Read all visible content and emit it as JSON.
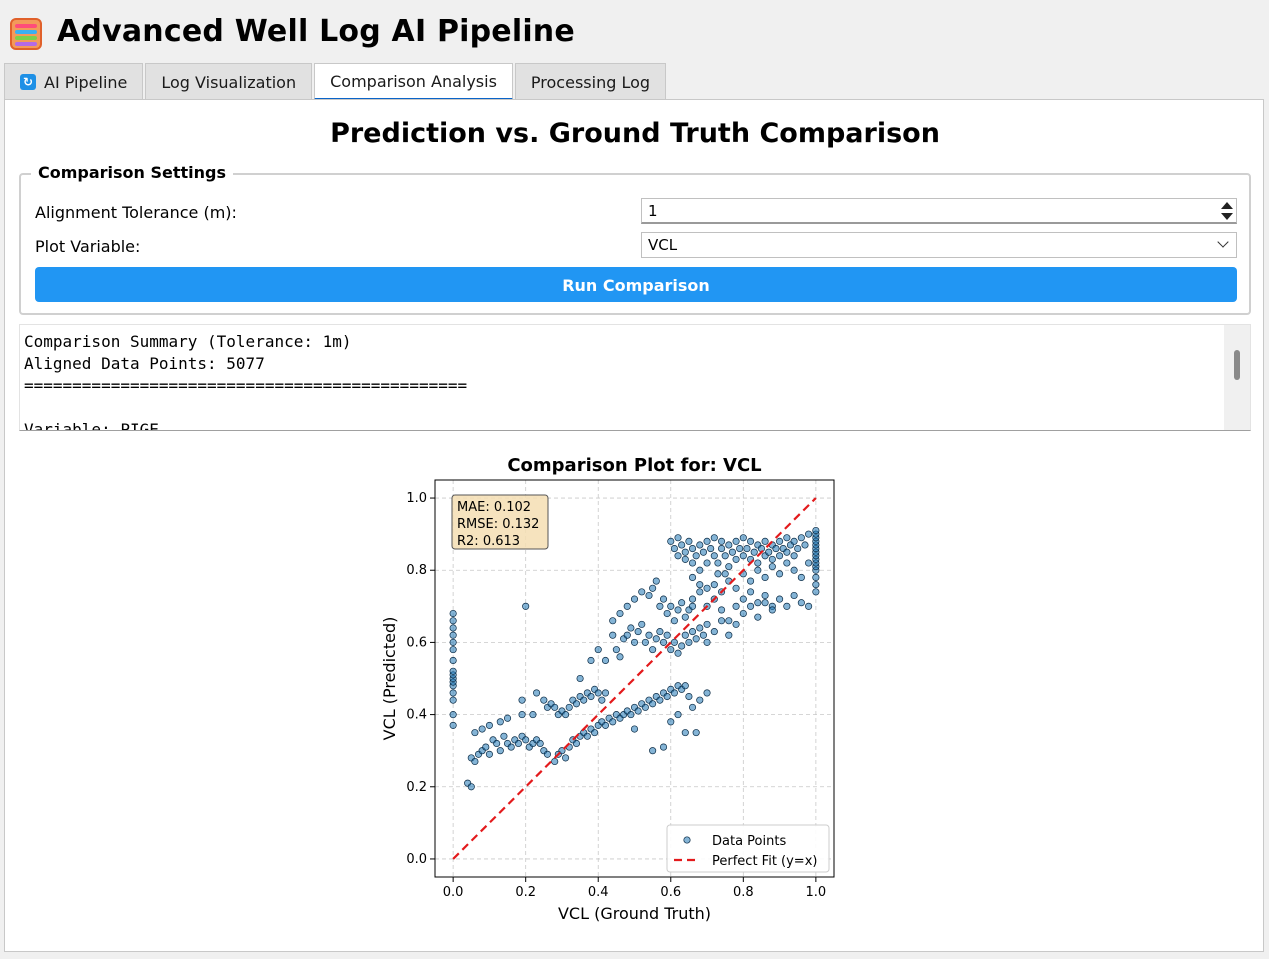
{
  "app": {
    "title": "Advanced Well Log AI Pipeline",
    "icon": "abacus-icon"
  },
  "tabs": [
    {
      "label": "AI Pipeline",
      "icon": "refresh-icon",
      "active": false
    },
    {
      "label": "Log Visualization",
      "active": false
    },
    {
      "label": "Comparison Analysis",
      "active": true
    },
    {
      "label": "Processing Log",
      "active": false
    }
  ],
  "page": {
    "title": "Prediction vs. Ground Truth Comparison"
  },
  "settings": {
    "legend": "Comparison Settings",
    "tolerance_label": "Alignment Tolerance (m):",
    "tolerance_value": "1",
    "variable_label": "Plot Variable:",
    "variable_value": "VCL",
    "run_label": "Run Comparison"
  },
  "summary": {
    "lines": [
      "Comparison Summary (Tolerance: 1m)",
      "Aligned Data Points: 5077",
      "==============================================",
      "",
      "Variable: PIGE"
    ]
  },
  "colors": {
    "accent": "#2196f3",
    "tab_underline": "#0a64c8",
    "point_fill": "#1f77b4",
    "fit_line": "#e31a1c",
    "metrics_box": "#f5deb3"
  },
  "chart_data": {
    "type": "scatter",
    "title": "Comparison Plot for: VCL",
    "xlabel": "VCL (Ground Truth)",
    "ylabel": "VCL (Predicted)",
    "xlim": [
      -0.05,
      1.05
    ],
    "ylim": [
      -0.05,
      1.05
    ],
    "xticks": [
      "0.0",
      "0.2",
      "0.4",
      "0.6",
      "0.8",
      "1.0"
    ],
    "yticks": [
      "0.0",
      "0.2",
      "0.4",
      "0.6",
      "0.8",
      "1.0"
    ],
    "grid": true,
    "metrics": [
      "MAE: 0.102",
      "RMSE: 0.132",
      "R2: 0.613"
    ],
    "metrics_position": "top-left",
    "legend_position": "bottom-right",
    "series": [
      {
        "name": "Data Points",
        "kind": "scatter",
        "points": [
          [
            0.0,
            0.37
          ],
          [
            0.0,
            0.4
          ],
          [
            0.0,
            0.44
          ],
          [
            0.0,
            0.46
          ],
          [
            0.0,
            0.48
          ],
          [
            0.0,
            0.49
          ],
          [
            0.0,
            0.5
          ],
          [
            0.0,
            0.51
          ],
          [
            0.0,
            0.52
          ],
          [
            0.0,
            0.55
          ],
          [
            0.0,
            0.58
          ],
          [
            0.0,
            0.6
          ],
          [
            0.0,
            0.62
          ],
          [
            0.0,
            0.64
          ],
          [
            0.0,
            0.66
          ],
          [
            0.0,
            0.68
          ],
          [
            0.04,
            0.21
          ],
          [
            0.05,
            0.2
          ],
          [
            0.05,
            0.28
          ],
          [
            0.06,
            0.27
          ],
          [
            0.07,
            0.29
          ],
          [
            0.08,
            0.3
          ],
          [
            0.09,
            0.31
          ],
          [
            0.1,
            0.29
          ],
          [
            0.11,
            0.33
          ],
          [
            0.12,
            0.32
          ],
          [
            0.13,
            0.3
          ],
          [
            0.14,
            0.34
          ],
          [
            0.15,
            0.32
          ],
          [
            0.16,
            0.31
          ],
          [
            0.17,
            0.33
          ],
          [
            0.18,
            0.32
          ],
          [
            0.19,
            0.34
          ],
          [
            0.2,
            0.33
          ],
          [
            0.21,
            0.31
          ],
          [
            0.22,
            0.32
          ],
          [
            0.23,
            0.33
          ],
          [
            0.24,
            0.32
          ],
          [
            0.25,
            0.3
          ],
          [
            0.06,
            0.35
          ],
          [
            0.08,
            0.36
          ],
          [
            0.1,
            0.37
          ],
          [
            0.13,
            0.38
          ],
          [
            0.15,
            0.39
          ],
          [
            0.19,
            0.4
          ],
          [
            0.22,
            0.4
          ],
          [
            0.2,
            0.7
          ],
          [
            0.19,
            0.44
          ],
          [
            0.23,
            0.46
          ],
          [
            0.25,
            0.44
          ],
          [
            0.26,
            0.42
          ],
          [
            0.27,
            0.43
          ],
          [
            0.28,
            0.42
          ],
          [
            0.29,
            0.4
          ],
          [
            0.3,
            0.41
          ],
          [
            0.31,
            0.4
          ],
          [
            0.32,
            0.42
          ],
          [
            0.33,
            0.44
          ],
          [
            0.34,
            0.43
          ],
          [
            0.35,
            0.45
          ],
          [
            0.36,
            0.44
          ],
          [
            0.37,
            0.46
          ],
          [
            0.38,
            0.45
          ],
          [
            0.39,
            0.47
          ],
          [
            0.4,
            0.46
          ],
          [
            0.41,
            0.44
          ],
          [
            0.42,
            0.46
          ],
          [
            0.26,
            0.29
          ],
          [
            0.28,
            0.27
          ],
          [
            0.29,
            0.29
          ],
          [
            0.3,
            0.3
          ],
          [
            0.31,
            0.28
          ],
          [
            0.32,
            0.31
          ],
          [
            0.33,
            0.33
          ],
          [
            0.34,
            0.32
          ],
          [
            0.35,
            0.34
          ],
          [
            0.36,
            0.35
          ],
          [
            0.37,
            0.34
          ],
          [
            0.38,
            0.36
          ],
          [
            0.39,
            0.35
          ],
          [
            0.4,
            0.37
          ],
          [
            0.41,
            0.38
          ],
          [
            0.42,
            0.37
          ],
          [
            0.43,
            0.39
          ],
          [
            0.44,
            0.38
          ],
          [
            0.45,
            0.4
          ],
          [
            0.46,
            0.39
          ],
          [
            0.47,
            0.4
          ],
          [
            0.48,
            0.41
          ],
          [
            0.49,
            0.4
          ],
          [
            0.5,
            0.42
          ],
          [
            0.51,
            0.41
          ],
          [
            0.52,
            0.43
          ],
          [
            0.53,
            0.42
          ],
          [
            0.54,
            0.44
          ],
          [
            0.55,
            0.43
          ],
          [
            0.56,
            0.45
          ],
          [
            0.57,
            0.44
          ],
          [
            0.58,
            0.46
          ],
          [
            0.59,
            0.45
          ],
          [
            0.6,
            0.47
          ],
          [
            0.61,
            0.46
          ],
          [
            0.62,
            0.48
          ],
          [
            0.63,
            0.47
          ],
          [
            0.64,
            0.48
          ],
          [
            0.65,
            0.45
          ],
          [
            0.35,
            0.5
          ],
          [
            0.38,
            0.55
          ],
          [
            0.4,
            0.58
          ],
          [
            0.42,
            0.55
          ],
          [
            0.44,
            0.62
          ],
          [
            0.45,
            0.58
          ],
          [
            0.46,
            0.56
          ],
          [
            0.47,
            0.61
          ],
          [
            0.48,
            0.62
          ],
          [
            0.49,
            0.64
          ],
          [
            0.5,
            0.6
          ],
          [
            0.51,
            0.63
          ],
          [
            0.52,
            0.65
          ],
          [
            0.53,
            0.6
          ],
          [
            0.54,
            0.62
          ],
          [
            0.55,
            0.58
          ],
          [
            0.56,
            0.61
          ],
          [
            0.57,
            0.63
          ],
          [
            0.58,
            0.6
          ],
          [
            0.59,
            0.62
          ],
          [
            0.6,
            0.58
          ],
          [
            0.61,
            0.6
          ],
          [
            0.62,
            0.57
          ],
          [
            0.63,
            0.59
          ],
          [
            0.64,
            0.62
          ],
          [
            0.65,
            0.6
          ],
          [
            0.66,
            0.63
          ],
          [
            0.67,
            0.61
          ],
          [
            0.68,
            0.64
          ],
          [
            0.69,
            0.62
          ],
          [
            0.7,
            0.65
          ],
          [
            0.44,
            0.66
          ],
          [
            0.46,
            0.68
          ],
          [
            0.48,
            0.7
          ],
          [
            0.5,
            0.72
          ],
          [
            0.52,
            0.74
          ],
          [
            0.54,
            0.73
          ],
          [
            0.55,
            0.75
          ],
          [
            0.56,
            0.77
          ],
          [
            0.57,
            0.7
          ],
          [
            0.58,
            0.72
          ],
          [
            0.59,
            0.68
          ],
          [
            0.6,
            0.7
          ],
          [
            0.61,
            0.66
          ],
          [
            0.62,
            0.69
          ],
          [
            0.63,
            0.71
          ],
          [
            0.64,
            0.67
          ],
          [
            0.65,
            0.69
          ],
          [
            0.66,
            0.72
          ],
          [
            0.6,
            0.88
          ],
          [
            0.61,
            0.86
          ],
          [
            0.62,
            0.84
          ],
          [
            0.62,
            0.89
          ],
          [
            0.63,
            0.87
          ],
          [
            0.64,
            0.85
          ],
          [
            0.64,
            0.83
          ],
          [
            0.65,
            0.88
          ],
          [
            0.66,
            0.86
          ],
          [
            0.66,
            0.82
          ],
          [
            0.67,
            0.84
          ],
          [
            0.68,
            0.87
          ],
          [
            0.68,
            0.8
          ],
          [
            0.69,
            0.85
          ],
          [
            0.7,
            0.88
          ],
          [
            0.7,
            0.82
          ],
          [
            0.71,
            0.86
          ],
          [
            0.72,
            0.84
          ],
          [
            0.72,
            0.89
          ],
          [
            0.73,
            0.82
          ],
          [
            0.74,
            0.86
          ],
          [
            0.74,
            0.88
          ],
          [
            0.75,
            0.84
          ],
          [
            0.76,
            0.87
          ],
          [
            0.76,
            0.81
          ],
          [
            0.77,
            0.85
          ],
          [
            0.78,
            0.88
          ],
          [
            0.78,
            0.83
          ],
          [
            0.79,
            0.86
          ],
          [
            0.8,
            0.84
          ],
          [
            0.8,
            0.89
          ],
          [
            0.81,
            0.86
          ],
          [
            0.82,
            0.83
          ],
          [
            0.82,
            0.88
          ],
          [
            0.83,
            0.85
          ],
          [
            0.84,
            0.87
          ],
          [
            0.84,
            0.82
          ],
          [
            0.85,
            0.86
          ],
          [
            0.86,
            0.84
          ],
          [
            0.86,
            0.88
          ],
          [
            0.87,
            0.85
          ],
          [
            0.88,
            0.87
          ],
          [
            0.88,
            0.83
          ],
          [
            0.89,
            0.86
          ],
          [
            0.9,
            0.88
          ],
          [
            0.9,
            0.84
          ],
          [
            0.91,
            0.86
          ],
          [
            0.92,
            0.89
          ],
          [
            0.92,
            0.85
          ],
          [
            0.93,
            0.87
          ],
          [
            0.94,
            0.84
          ],
          [
            0.94,
            0.88
          ],
          [
            0.95,
            0.86
          ],
          [
            0.96,
            0.89
          ],
          [
            0.97,
            0.87
          ],
          [
            0.98,
            0.9
          ],
          [
            0.66,
            0.78
          ],
          [
            0.68,
            0.76
          ],
          [
            0.7,
            0.75
          ],
          [
            0.72,
            0.76
          ],
          [
            0.74,
            0.74
          ],
          [
            0.76,
            0.77
          ],
          [
            0.78,
            0.75
          ],
          [
            0.8,
            0.72
          ],
          [
            0.82,
            0.74
          ],
          [
            0.84,
            0.71
          ],
          [
            0.86,
            0.73
          ],
          [
            0.88,
            0.7
          ],
          [
            0.9,
            0.72
          ],
          [
            0.92,
            0.7
          ],
          [
            0.94,
            0.73
          ],
          [
            0.96,
            0.71
          ],
          [
            0.98,
            0.7
          ],
          [
            0.7,
            0.7
          ],
          [
            0.72,
            0.72
          ],
          [
            0.74,
            0.69
          ],
          [
            0.76,
            0.66
          ],
          [
            0.78,
            0.7
          ],
          [
            0.8,
            0.68
          ],
          [
            0.82,
            0.7
          ],
          [
            0.84,
            0.67
          ],
          [
            0.86,
            0.71
          ],
          [
            0.88,
            0.69
          ],
          [
            0.68,
            0.74
          ],
          [
            0.66,
            0.7
          ],
          [
            0.7,
            0.6
          ],
          [
            0.72,
            0.63
          ],
          [
            0.74,
            0.66
          ],
          [
            0.76,
            0.62
          ],
          [
            0.78,
            0.65
          ],
          [
            0.84,
            0.8
          ],
          [
            0.86,
            0.78
          ],
          [
            0.88,
            0.81
          ],
          [
            0.9,
            0.79
          ],
          [
            0.92,
            0.82
          ],
          [
            0.94,
            0.8
          ],
          [
            0.96,
            0.78
          ],
          [
            0.98,
            0.82
          ],
          [
            0.8,
            0.79
          ],
          [
            0.82,
            0.77
          ],
          [
            0.75,
            0.79
          ],
          [
            0.73,
            0.79
          ],
          [
            1.0,
            0.74
          ],
          [
            1.0,
            0.76
          ],
          [
            1.0,
            0.78
          ],
          [
            1.0,
            0.8
          ],
          [
            1.0,
            0.81
          ],
          [
            1.0,
            0.82
          ],
          [
            1.0,
            0.83
          ],
          [
            1.0,
            0.84
          ],
          [
            1.0,
            0.85
          ],
          [
            1.0,
            0.86
          ],
          [
            1.0,
            0.87
          ],
          [
            1.0,
            0.88
          ],
          [
            1.0,
            0.89
          ],
          [
            1.0,
            0.9
          ],
          [
            1.0,
            0.91
          ],
          [
            0.55,
            0.3
          ],
          [
            0.58,
            0.31
          ],
          [
            0.6,
            0.38
          ],
          [
            0.62,
            0.4
          ],
          [
            0.66,
            0.42
          ],
          [
            0.68,
            0.44
          ],
          [
            0.7,
            0.46
          ],
          [
            0.67,
            0.35
          ],
          [
            0.64,
            0.35
          ],
          [
            0.5,
            0.36
          ]
        ]
      },
      {
        "name": "Perfect Fit (y=x)",
        "kind": "line",
        "points": [
          [
            0.0,
            0.0
          ],
          [
            1.0,
            1.0
          ]
        ]
      }
    ]
  }
}
